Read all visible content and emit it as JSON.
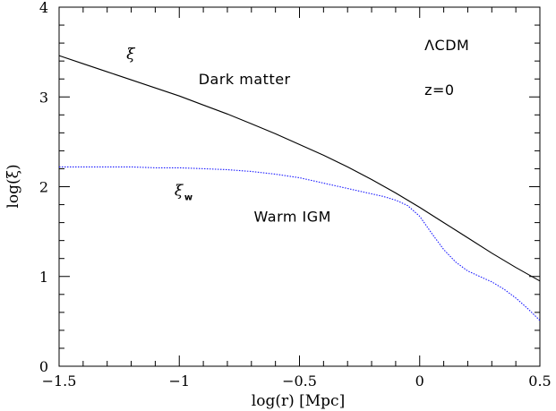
{
  "chart_data": {
    "type": "line",
    "xlabel": "log(r) [Mpc]",
    "ylabel": "log(ξ)",
    "xlim": [
      -1.5,
      0.5
    ],
    "ylim": [
      0,
      4
    ],
    "grid": false,
    "x_major_ticks": [
      -1.5,
      -1,
      -0.5,
      0,
      0.5
    ],
    "x_tick_labels": [
      "−1.5",
      "−1",
      "−0.5",
      "0",
      "0.5"
    ],
    "y_major_ticks": [
      0,
      1,
      2,
      3,
      4
    ],
    "y_tick_labels": [
      "0",
      "1",
      "2",
      "3",
      "4"
    ],
    "series": [
      {
        "color": "#000000",
        "line_style": "solid",
        "x": [
          -1.5,
          -1.4,
          -1.3,
          -1.2,
          -1.1,
          -1.0,
          -0.9,
          -0.8,
          -0.7,
          -0.6,
          -0.5,
          -0.4,
          -0.3,
          -0.2,
          -0.1,
          0.0,
          0.1,
          0.2,
          0.3,
          0.4,
          0.5
        ],
        "y": [
          3.46,
          3.37,
          3.28,
          3.19,
          3.1,
          3.01,
          2.91,
          2.81,
          2.7,
          2.59,
          2.47,
          2.35,
          2.22,
          2.08,
          1.93,
          1.77,
          1.6,
          1.43,
          1.26,
          1.1,
          0.95
        ]
      },
      {
        "color": "#1a1aff",
        "line_style": "dotted",
        "x": [
          -1.5,
          -1.4,
          -1.3,
          -1.2,
          -1.1,
          -1.0,
          -0.9,
          -0.8,
          -0.7,
          -0.6,
          -0.5,
          -0.4,
          -0.3,
          -0.2,
          -0.15,
          -0.1,
          -0.05,
          0.0,
          0.05,
          0.1,
          0.15,
          0.2,
          0.25,
          0.3,
          0.35,
          0.4,
          0.45,
          0.5
        ],
        "y": [
          2.22,
          2.22,
          2.22,
          2.22,
          2.21,
          2.21,
          2.2,
          2.19,
          2.17,
          2.14,
          2.1,
          2.04,
          1.98,
          1.92,
          1.89,
          1.85,
          1.79,
          1.67,
          1.48,
          1.3,
          1.16,
          1.06,
          1.0,
          0.94,
          0.86,
          0.76,
          0.64,
          0.51
        ]
      }
    ],
    "annotations": [
      {
        "label": "ξ",
        "x": -1.22,
        "y": 3.42,
        "style": "greek"
      },
      {
        "label": "Dark matter",
        "x": -0.92,
        "y": 3.14,
        "style": "text"
      },
      {
        "label": "ΛCDM",
        "x": 0.02,
        "y": 3.52,
        "style": "text"
      },
      {
        "label": "z=0",
        "x": 0.02,
        "y": 3.02,
        "style": "text"
      },
      {
        "label": "ξ",
        "sub": "w",
        "x": -1.02,
        "y": 1.9,
        "style": "greek-sub"
      },
      {
        "label": "Warm IGM",
        "x": -0.69,
        "y": 1.61,
        "style": "text"
      }
    ]
  }
}
